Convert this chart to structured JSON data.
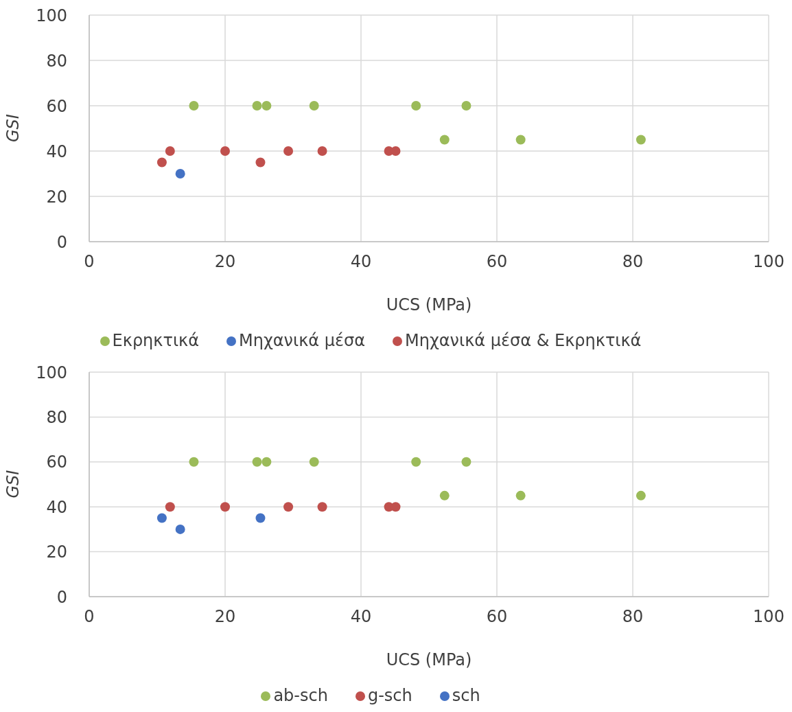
{
  "chart_data": [
    {
      "type": "scatter",
      "xlabel": "UCS (MPa)",
      "ylabel": "GSI",
      "xlim": [
        0,
        100
      ],
      "ylim": [
        0,
        100
      ],
      "xticks": [
        0,
        20,
        40,
        60,
        80,
        100
      ],
      "yticks": [
        0,
        20,
        40,
        60,
        80,
        100
      ],
      "grid": true,
      "legend": "bottom",
      "marker": "circle",
      "series": [
        {
          "name": "Μηχανικά μέσα",
          "color": "#4472c4",
          "x": [
            13.4
          ],
          "values": [
            30
          ]
        },
        {
          "name": "Μηχανικά μέσα & Εκρηκτικά",
          "color": "#c0504d",
          "x": [
            10.7,
            11.9,
            20,
            25.2,
            29.3,
            34.3,
            44.1,
            45.1
          ],
          "values": [
            35,
            40,
            40,
            35,
            40,
            40,
            40,
            40
          ]
        },
        {
          "name": "Εκρηκτικά",
          "color": "#9bbb59",
          "x": [
            15.4,
            24.7,
            26.1,
            33.1,
            48.1,
            55.5,
            52.3,
            63.5,
            81.2
          ],
          "values": [
            60,
            60,
            60,
            60,
            60,
            60,
            45,
            45,
            45
          ]
        }
      ]
    },
    {
      "type": "scatter",
      "xlabel": "UCS (MPa)",
      "ylabel": "GSI",
      "xlim": [
        0,
        100
      ],
      "ylim": [
        0,
        100
      ],
      "xticks": [
        0,
        20,
        40,
        60,
        80,
        100
      ],
      "yticks": [
        0,
        20,
        40,
        60,
        80,
        100
      ],
      "grid": true,
      "legend": "bottom",
      "marker": "circle",
      "series": [
        {
          "name": "sch",
          "color": "#4472c4",
          "x": [
            10.7,
            13.4,
            25.2
          ],
          "values": [
            35,
            30,
            35
          ]
        },
        {
          "name": "g-sch",
          "color": "#c0504d",
          "x": [
            11.9,
            20,
            29.3,
            34.3,
            44.1,
            45.1
          ],
          "values": [
            40,
            40,
            40,
            40,
            40,
            40
          ]
        },
        {
          "name": "ab-sch",
          "color": "#9bbb59",
          "x": [
            15.4,
            24.7,
            26.1,
            33.1,
            48.1,
            55.5,
            52.3,
            63.5,
            81.2
          ],
          "values": [
            60,
            60,
            60,
            60,
            60,
            60,
            45,
            45,
            45
          ]
        }
      ]
    }
  ]
}
